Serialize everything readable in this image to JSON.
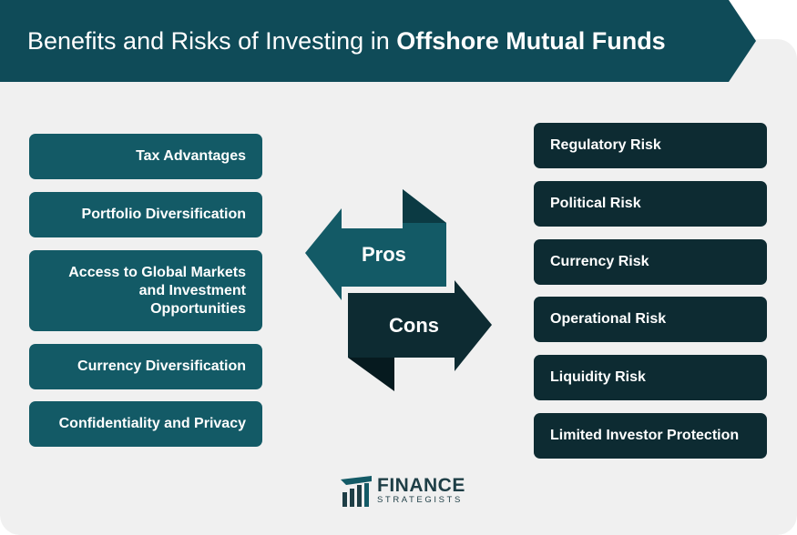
{
  "title": {
    "prefix": "Benefits and Risks of Investing in ",
    "bold": "Offshore Mutual Funds"
  },
  "pros_label": "Pros",
  "cons_label": "Cons",
  "pros": [
    "Tax Advantages",
    "Portfolio Diversification",
    "Access to Global Markets and Investment Opportunities",
    "Currency Diversification",
    "Confidentiality and Privacy"
  ],
  "cons": [
    "Regulatory Risk",
    "Political Risk",
    "Currency Risk",
    "Operational Risk",
    "Liquidity Risk",
    "Limited Investor Protection"
  ],
  "logo": {
    "line1": "FINANCE",
    "line2": "STRATEGISTS"
  },
  "colors": {
    "header": "#0f4b58",
    "pros_box": "#135a66",
    "cons_box": "#0d2b32",
    "background": "#f0f0f0"
  }
}
